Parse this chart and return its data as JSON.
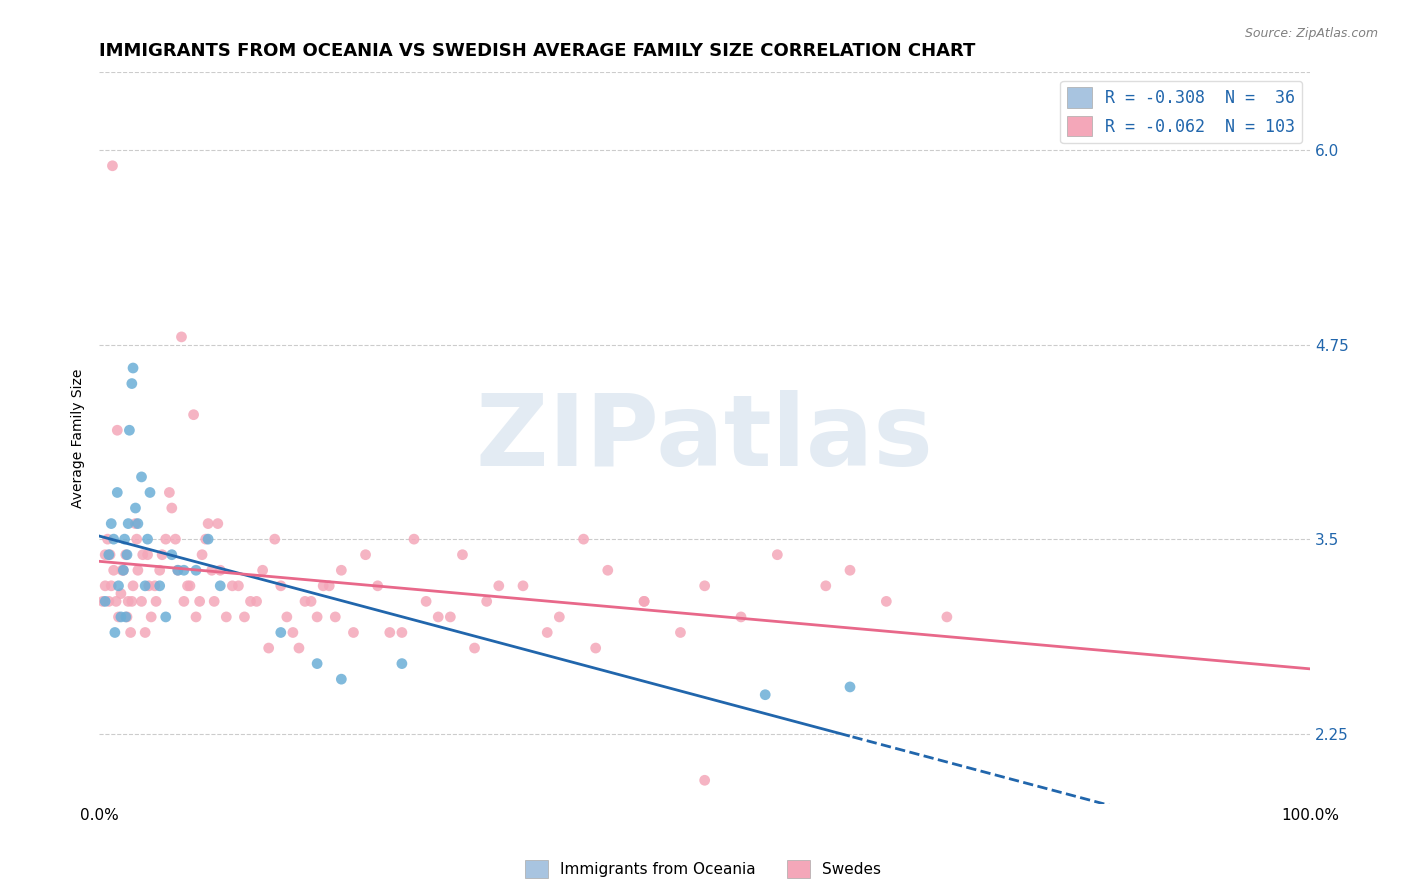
{
  "title": "IMMIGRANTS FROM OCEANIA VS SWEDISH AVERAGE FAMILY SIZE CORRELATION CHART",
  "source": "Source: ZipAtlas.com",
  "xlabel": "",
  "ylabel": "Average Family Size",
  "xlim": [
    0.0,
    1.0
  ],
  "ylim": [
    1.8,
    6.5
  ],
  "yticks": [
    2.25,
    3.5,
    4.75,
    6.0
  ],
  "xticks": [
    0.0,
    1.0
  ],
  "xticklabels": [
    "0.0%",
    "100.0%"
  ],
  "legend_entries": [
    {
      "label": "R = -0.308  N =  36",
      "color": "#a8c4e0"
    },
    {
      "label": "R = -0.062  N = 103",
      "color": "#f4a7b9"
    }
  ],
  "legend_bottom": [
    "Immigrants from Oceania",
    "Swedes"
  ],
  "legend_bottom_colors": [
    "#a8c4e0",
    "#f4a7b9"
  ],
  "blue_color": "#6baed6",
  "pink_color": "#f4a7b9",
  "blue_line_color": "#2166ac",
  "pink_line_color": "#e8688a",
  "watermark": "ZIPat​las",
  "watermark_color": "#c8d8e8",
  "grid_color": "#cccccc",
  "title_fontsize": 13,
  "axis_label_fontsize": 10,
  "tick_fontsize": 11,
  "blue_R": -0.308,
  "blue_N": 36,
  "pink_R": -0.062,
  "pink_N": 103,
  "blue_scatter_x": [
    0.005,
    0.008,
    0.01,
    0.012,
    0.013,
    0.015,
    0.016,
    0.018,
    0.02,
    0.021,
    0.022,
    0.023,
    0.024,
    0.025,
    0.027,
    0.028,
    0.03,
    0.032,
    0.035,
    0.038,
    0.04,
    0.042,
    0.05,
    0.055,
    0.06,
    0.065,
    0.07,
    0.08,
    0.09,
    0.1,
    0.15,
    0.18,
    0.2,
    0.25,
    0.55,
    0.62
  ],
  "blue_scatter_y": [
    3.1,
    3.4,
    3.6,
    3.5,
    2.9,
    3.8,
    3.2,
    3.0,
    3.3,
    3.5,
    3.0,
    3.4,
    3.6,
    4.2,
    4.5,
    4.6,
    3.7,
    3.6,
    3.9,
    3.2,
    3.5,
    3.8,
    3.2,
    3.0,
    3.4,
    3.3,
    3.3,
    3.3,
    3.5,
    3.2,
    2.9,
    2.7,
    2.6,
    2.7,
    2.5,
    2.55
  ],
  "pink_scatter_x": [
    0.003,
    0.005,
    0.007,
    0.009,
    0.01,
    0.012,
    0.014,
    0.016,
    0.018,
    0.02,
    0.022,
    0.024,
    0.026,
    0.028,
    0.03,
    0.032,
    0.035,
    0.038,
    0.04,
    0.043,
    0.046,
    0.05,
    0.055,
    0.06,
    0.065,
    0.07,
    0.075,
    0.08,
    0.085,
    0.09,
    0.095,
    0.1,
    0.11,
    0.12,
    0.13,
    0.14,
    0.15,
    0.16,
    0.17,
    0.18,
    0.19,
    0.2,
    0.22,
    0.24,
    0.26,
    0.28,
    0.3,
    0.32,
    0.35,
    0.38,
    0.4,
    0.42,
    0.45,
    0.48,
    0.5,
    0.53,
    0.56,
    0.6,
    0.65,
    0.7,
    0.005,
    0.008,
    0.011,
    0.015,
    0.019,
    0.023,
    0.027,
    0.031,
    0.036,
    0.041,
    0.047,
    0.052,
    0.058,
    0.063,
    0.068,
    0.073,
    0.078,
    0.083,
    0.088,
    0.093,
    0.098,
    0.105,
    0.115,
    0.125,
    0.135,
    0.145,
    0.155,
    0.165,
    0.175,
    0.185,
    0.195,
    0.21,
    0.23,
    0.25,
    0.27,
    0.29,
    0.31,
    0.33,
    0.37,
    0.41,
    0.45,
    0.5,
    0.62
  ],
  "pink_scatter_y": [
    3.1,
    3.2,
    3.5,
    3.4,
    3.2,
    3.3,
    3.1,
    3.0,
    3.15,
    3.3,
    3.4,
    3.1,
    2.9,
    3.2,
    3.6,
    3.3,
    3.1,
    2.9,
    3.4,
    3.0,
    3.2,
    3.3,
    3.5,
    3.7,
    3.3,
    3.1,
    3.2,
    3.0,
    3.4,
    3.6,
    3.1,
    3.3,
    3.2,
    3.0,
    3.1,
    2.8,
    3.2,
    2.9,
    3.1,
    3.0,
    3.2,
    3.3,
    3.4,
    2.9,
    3.5,
    3.0,
    3.4,
    3.1,
    3.2,
    3.0,
    3.5,
    3.3,
    3.1,
    2.9,
    3.2,
    3.0,
    3.4,
    3.2,
    3.1,
    3.0,
    3.4,
    3.1,
    5.9,
    4.2,
    3.3,
    3.0,
    3.1,
    3.5,
    3.4,
    3.2,
    3.1,
    3.4,
    3.8,
    3.5,
    4.8,
    3.2,
    4.3,
    3.1,
    3.5,
    3.3,
    3.6,
    3.0,
    3.2,
    3.1,
    3.3,
    3.5,
    3.0,
    2.8,
    3.1,
    3.2,
    3.0,
    2.9,
    3.2,
    2.9,
    3.1,
    3.0,
    2.8,
    3.2,
    2.9,
    2.8,
    3.1,
    1.95,
    3.3
  ]
}
